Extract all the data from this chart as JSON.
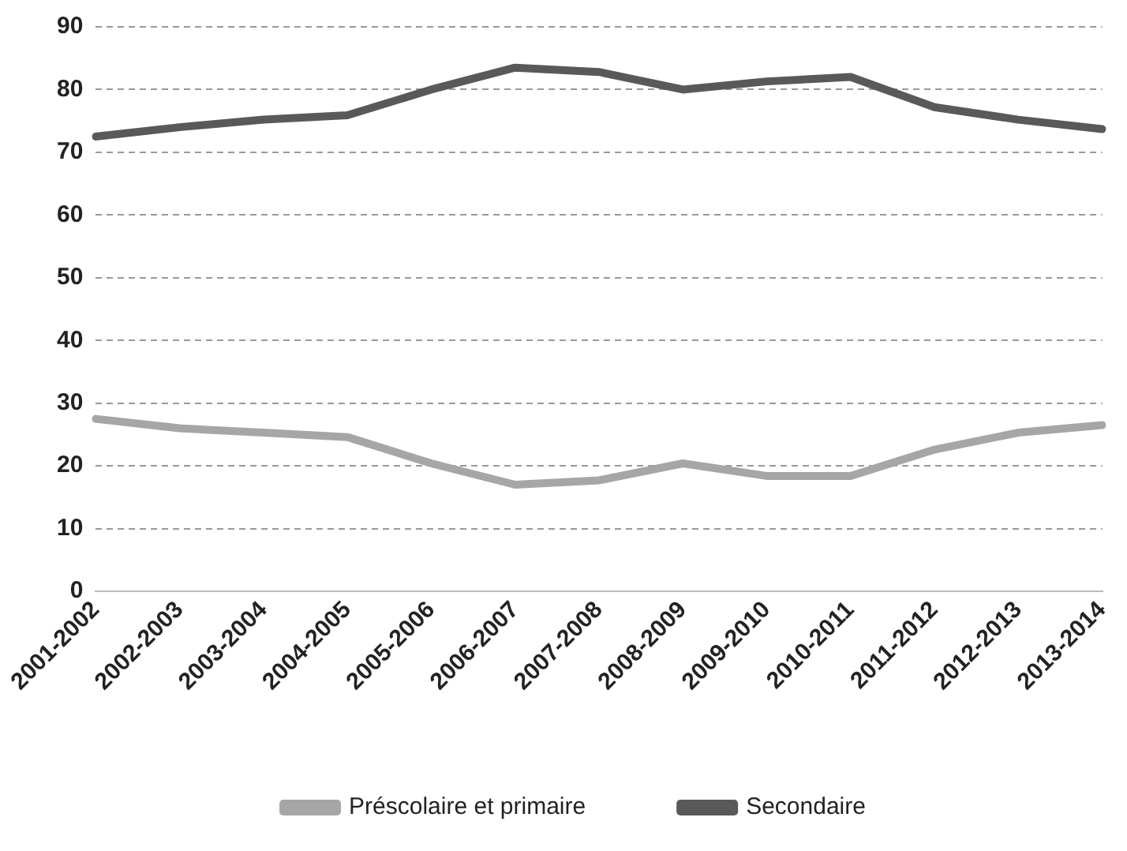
{
  "chart_data": {
    "type": "line",
    "categories": [
      "2001-2002",
      "2002-2003",
      "2003-2004",
      "2004-2005",
      "2005-2006",
      "2006-2007",
      "2007-2008",
      "2008-2009",
      "2009-2010",
      "2010-2011",
      "2011-2012",
      "2012-2013",
      "2013-2014"
    ],
    "series": [
      {
        "name": "Préscolaire et primaire",
        "color": "#a6a6a6",
        "values": [
          27.5,
          26,
          25.3,
          24.6,
          20.4,
          17,
          17.7,
          20.4,
          18.4,
          18.4,
          22.6,
          25.3,
          26.5
        ]
      },
      {
        "name": "Secondaire",
        "color": "#595959",
        "values": [
          72.5,
          74,
          75.2,
          75.9,
          80,
          83.5,
          82.8,
          80,
          81.3,
          82,
          77.2,
          75.2,
          73.7
        ]
      }
    ],
    "ylim": [
      0,
      90
    ],
    "yticks": [
      0,
      10,
      20,
      30,
      40,
      50,
      60,
      70,
      80,
      90
    ],
    "grid": "y",
    "legend": "bottom",
    "marker": "none",
    "line_style": "solid"
  }
}
